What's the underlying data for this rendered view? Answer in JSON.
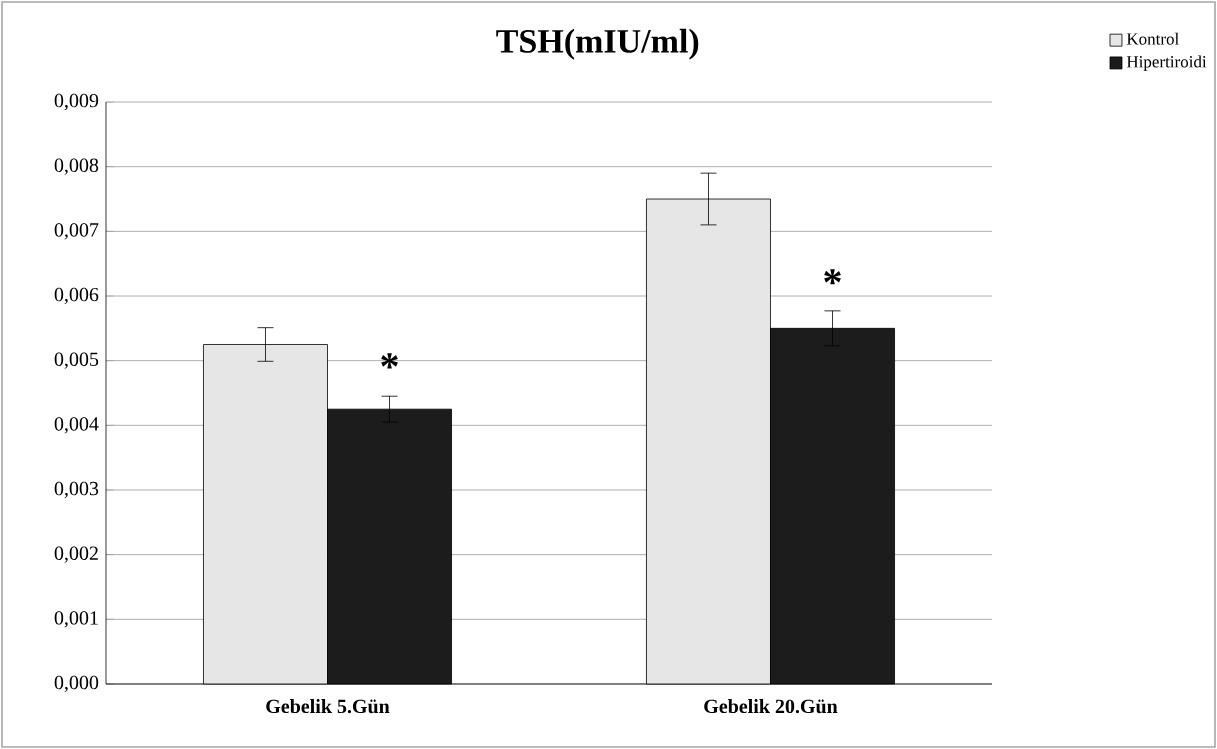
{
  "chart_data": {
    "type": "bar",
    "title": "TSH(mIU/ml)",
    "categories": [
      "Gebelik 5.Gün",
      "Gebelik 20.Gün"
    ],
    "series": [
      {
        "name": "Kontrol",
        "color": "#e6e6e6",
        "values": [
          0.00525,
          0.0075
        ],
        "errors": [
          0.00026,
          0.0004
        ]
      },
      {
        "name": "Hipertiroidi",
        "color": "#1c1c1c",
        "values": [
          0.00425,
          0.0055
        ],
        "errors": [
          0.0002,
          0.00027
        ]
      }
    ],
    "ylim": [
      0,
      0.009
    ],
    "yticks": [
      {
        "value": 0,
        "label": "0,000"
      },
      {
        "value": 0.001,
        "label": "0,001"
      },
      {
        "value": 0.002,
        "label": "0,002"
      },
      {
        "value": 0.003,
        "label": "0,003"
      },
      {
        "value": 0.004,
        "label": "0,004"
      },
      {
        "value": 0.005,
        "label": "0,005"
      },
      {
        "value": 0.006,
        "label": "0,006"
      },
      {
        "value": 0.007,
        "label": "0,007"
      },
      {
        "value": 0.008,
        "label": "0,008"
      },
      {
        "value": 0.009,
        "label": "0,009"
      }
    ],
    "annotations": [
      {
        "text": "*",
        "x": "Gebelik 5.Gün",
        "y": 0.0047
      },
      {
        "text": "*",
        "x": "Gebelik 20.Gün",
        "y": 0.006
      }
    ],
    "grid": "y",
    "legend": "top right"
  }
}
